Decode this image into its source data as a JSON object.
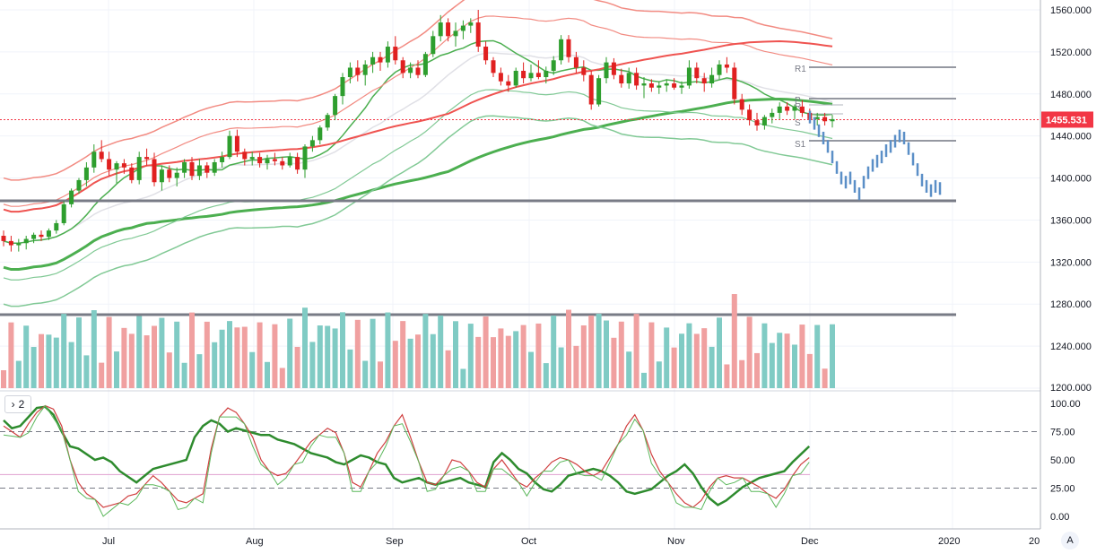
{
  "price_axis_ticks": [
    "1560.000",
    "1520.000",
    "1480.000",
    "1440.000",
    "1400.000",
    "1360.000",
    "1320.000",
    "1280.000",
    "1240.000",
    "1200.000"
  ],
  "osc_axis_ticks": [
    "100.00",
    "75.00",
    "50.00",
    "25.00",
    "0.00"
  ],
  "time_labels": [
    "Jul",
    "Aug",
    "Sep",
    "Oct",
    "Nov",
    "Dec",
    "2020",
    "20"
  ],
  "last_price_label": "1455.531",
  "pane_toggle": {
    "chevron": "chevron-right-icon",
    "count": "2"
  },
  "autoscale_label": "A",
  "pivot_labels": [
    "R1",
    "P",
    "R",
    "S",
    "S1"
  ],
  "colors": {
    "up": "#089981",
    "down": "#f23645",
    "candle_up": "#2e9e2e",
    "candle_down": "#e02020",
    "vol_up": "#80cbc4",
    "vol_down": "#f0a0a0",
    "bb_up": "#f28b82",
    "bb_low": "#81c995",
    "ma_slow": "#4caf50",
    "ma_mid": "#ef5350",
    "projection": "#5b8fc7",
    "level": "#787b86"
  },
  "chart_data": [
    {
      "type": "candlestick",
      "title": "",
      "x_range": [
        "2019-06-01",
        "2020-01-15"
      ],
      "ylim": [
        1200,
        1570
      ],
      "candles": [
        [
          1345,
          1350,
          1335,
          1340
        ],
        [
          1340,
          1345,
          1330,
          1336
        ],
        [
          1336,
          1342,
          1330,
          1338
        ],
        [
          1338,
          1345,
          1332,
          1342
        ],
        [
          1342,
          1348,
          1338,
          1346
        ],
        [
          1346,
          1350,
          1340,
          1344
        ],
        [
          1344,
          1352,
          1341,
          1350
        ],
        [
          1350,
          1360,
          1347,
          1357
        ],
        [
          1357,
          1378,
          1355,
          1375
        ],
        [
          1375,
          1390,
          1372,
          1388
        ],
        [
          1388,
          1400,
          1385,
          1398
        ],
        [
          1398,
          1415,
          1392,
          1410
        ],
        [
          1410,
          1432,
          1405,
          1425
        ],
        [
          1425,
          1436,
          1415,
          1418
        ],
        [
          1418,
          1425,
          1402,
          1408
        ],
        [
          1408,
          1416,
          1395,
          1414
        ],
        [
          1414,
          1418,
          1404,
          1410
        ],
        [
          1410,
          1414,
          1395,
          1398
        ],
        [
          1398,
          1425,
          1394,
          1420
        ],
        [
          1420,
          1428,
          1412,
          1418
        ],
        [
          1418,
          1424,
          1392,
          1396
        ],
        [
          1396,
          1412,
          1388,
          1408
        ],
        [
          1408,
          1412,
          1396,
          1400
        ],
        [
          1400,
          1410,
          1392,
          1405
        ],
        [
          1405,
          1418,
          1400,
          1415
        ],
        [
          1415,
          1420,
          1398,
          1402
        ],
        [
          1402,
          1418,
          1398,
          1412
        ],
        [
          1412,
          1415,
          1400,
          1405
        ],
        [
          1405,
          1418,
          1402,
          1415
        ],
        [
          1415,
          1425,
          1410,
          1420
        ],
        [
          1420,
          1445,
          1418,
          1440
        ],
        [
          1440,
          1446,
          1420,
          1425
        ],
        [
          1425,
          1428,
          1412,
          1418
        ],
        [
          1418,
          1425,
          1412,
          1420
        ],
        [
          1420,
          1424,
          1410,
          1414
        ],
        [
          1414,
          1422,
          1408,
          1418
        ],
        [
          1418,
          1424,
          1412,
          1416
        ],
        [
          1416,
          1420,
          1408,
          1412
        ],
        [
          1412,
          1424,
          1410,
          1420
        ],
        [
          1420,
          1424,
          1404,
          1408
        ],
        [
          1408,
          1432,
          1400,
          1430
        ],
        [
          1430,
          1440,
          1425,
          1436
        ],
        [
          1436,
          1450,
          1432,
          1448
        ],
        [
          1448,
          1462,
          1445,
          1460
        ],
        [
          1460,
          1480,
          1455,
          1478
        ],
        [
          1478,
          1500,
          1470,
          1496
        ],
        [
          1496,
          1510,
          1490,
          1505
        ],
        [
          1505,
          1512,
          1492,
          1498
        ],
        [
          1498,
          1512,
          1488,
          1508
        ],
        [
          1508,
          1520,
          1500,
          1515
        ],
        [
          1515,
          1520,
          1502,
          1510
        ],
        [
          1510,
          1530,
          1505,
          1525
        ],
        [
          1525,
          1535,
          1508,
          1512
        ],
        [
          1512,
          1515,
          1495,
          1500
        ],
        [
          1500,
          1510,
          1495,
          1505
        ],
        [
          1505,
          1512,
          1495,
          1498
        ],
        [
          1498,
          1520,
          1496,
          1518
        ],
        [
          1518,
          1540,
          1515,
          1535
        ],
        [
          1535,
          1555,
          1530,
          1548
        ],
        [
          1548,
          1552,
          1530,
          1535
        ],
        [
          1535,
          1548,
          1525,
          1540
        ],
        [
          1540,
          1550,
          1532,
          1545
        ],
        [
          1545,
          1552,
          1538,
          1548
        ],
        [
          1548,
          1560,
          1520,
          1525
        ],
        [
          1525,
          1530,
          1508,
          1512
        ],
        [
          1512,
          1515,
          1496,
          1500
        ],
        [
          1500,
          1505,
          1488,
          1492
        ],
        [
          1492,
          1498,
          1482,
          1488
        ],
        [
          1488,
          1505,
          1486,
          1502
        ],
        [
          1502,
          1510,
          1490,
          1495
        ],
        [
          1495,
          1508,
          1492,
          1500
        ],
        [
          1500,
          1512,
          1494,
          1496
        ],
        [
          1496,
          1506,
          1490,
          1502
        ],
        [
          1502,
          1516,
          1498,
          1512
        ],
        [
          1512,
          1536,
          1508,
          1532
        ],
        [
          1532,
          1536,
          1510,
          1515
        ],
        [
          1515,
          1520,
          1500,
          1505
        ],
        [
          1505,
          1512,
          1492,
          1498
        ],
        [
          1498,
          1502,
          1465,
          1470
        ],
        [
          1470,
          1498,
          1468,
          1495
        ],
        [
          1495,
          1515,
          1490,
          1510
        ],
        [
          1510,
          1514,
          1494,
          1498
        ],
        [
          1498,
          1504,
          1486,
          1490
        ],
        [
          1490,
          1505,
          1485,
          1500
        ],
        [
          1500,
          1505,
          1484,
          1488
        ],
        [
          1488,
          1496,
          1476,
          1490
        ],
        [
          1490,
          1494,
          1482,
          1486
        ],
        [
          1486,
          1492,
          1480,
          1488
        ],
        [
          1488,
          1494,
          1482,
          1490
        ],
        [
          1490,
          1495,
          1484,
          1486
        ],
        [
          1486,
          1492,
          1480,
          1488
        ],
        [
          1488,
          1512,
          1485,
          1505
        ],
        [
          1505,
          1510,
          1490,
          1495
        ],
        [
          1495,
          1500,
          1482,
          1490
        ],
        [
          1490,
          1505,
          1486,
          1498
        ],
        [
          1498,
          1512,
          1494,
          1508
        ],
        [
          1508,
          1515,
          1500,
          1505
        ],
        [
          1505,
          1510,
          1470,
          1475
        ],
        [
          1475,
          1480,
          1460,
          1465
        ],
        [
          1465,
          1470,
          1450,
          1455
        ],
        [
          1455,
          1462,
          1445,
          1450
        ],
        [
          1450,
          1460,
          1446,
          1458
        ],
        [
          1458,
          1466,
          1452,
          1462
        ],
        [
          1462,
          1472,
          1456,
          1468
        ],
        [
          1468,
          1472,
          1460,
          1464
        ],
        [
          1464,
          1470,
          1456,
          1468
        ],
        [
          1468,
          1474,
          1458,
          1462
        ],
        [
          1462,
          1466,
          1452,
          1456
        ],
        [
          1456,
          1462,
          1450,
          1458
        ],
        [
          1458,
          1462,
          1450,
          1454
        ],
        [
          1454,
          1460,
          1448,
          1456
        ]
      ],
      "projection": [
        1458,
        1452,
        1445,
        1438,
        1430,
        1420,
        1410,
        1400,
        1396,
        1400,
        1392,
        1385,
        1396,
        1405,
        1412,
        1416,
        1420,
        1426,
        1430,
        1435,
        1440,
        1438,
        1428,
        1418,
        1408,
        1398,
        1392,
        1388,
        1392,
        1390
      ]
    },
    {
      "type": "stochastic",
      "title": "",
      "ylim": [
        0,
        100
      ],
      "levels": [
        75,
        25
      ],
      "series": [
        {
          "name": "",
          "values": [
            85,
            78,
            80,
            88,
            96,
            97,
            90,
            75,
            62,
            60,
            55,
            50,
            52,
            48,
            40,
            35,
            30,
            36,
            42,
            44,
            46,
            48,
            50,
            70,
            80,
            85,
            82,
            75,
            78,
            76,
            74,
            72,
            72,
            68,
            66,
            64,
            60,
            56,
            54,
            52,
            48,
            46,
            50,
            54,
            52,
            48,
            46,
            34,
            30,
            32,
            34,
            30,
            28,
            30,
            32,
            34,
            30,
            28,
            26,
            48,
            56,
            50,
            42,
            38,
            30,
            24,
            22,
            28,
            36,
            38,
            40,
            42,
            40,
            36,
            30,
            22,
            20,
            22,
            24,
            30,
            36,
            40,
            46,
            38,
            26,
            16,
            10,
            14,
            20,
            26,
            30,
            34,
            36,
            38,
            40,
            48,
            55,
            62
          ]
        },
        {
          "name": "",
          "values": [
            80,
            75,
            70,
            82,
            92,
            98,
            95,
            80,
            50,
            30,
            20,
            15,
            8,
            10,
            12,
            18,
            20,
            28,
            36,
            30,
            22,
            14,
            12,
            16,
            20,
            60,
            88,
            96,
            92,
            82,
            70,
            50,
            40,
            36,
            38,
            46,
            56,
            66,
            72,
            78,
            74,
            56,
            30,
            26,
            40,
            56,
            66,
            80,
            90,
            70,
            48,
            30,
            28,
            36,
            50,
            48,
            40,
            30,
            26,
            42,
            50,
            40,
            30,
            26,
            34,
            40,
            48,
            52,
            50,
            46,
            40,
            36,
            40,
            52,
            64,
            80,
            90,
            76,
            55,
            40,
            30,
            20,
            12,
            8,
            14,
            26,
            34,
            36,
            34,
            34,
            30,
            26,
            20,
            16,
            24,
            36,
            46,
            52
          ]
        }
      ]
    }
  ]
}
